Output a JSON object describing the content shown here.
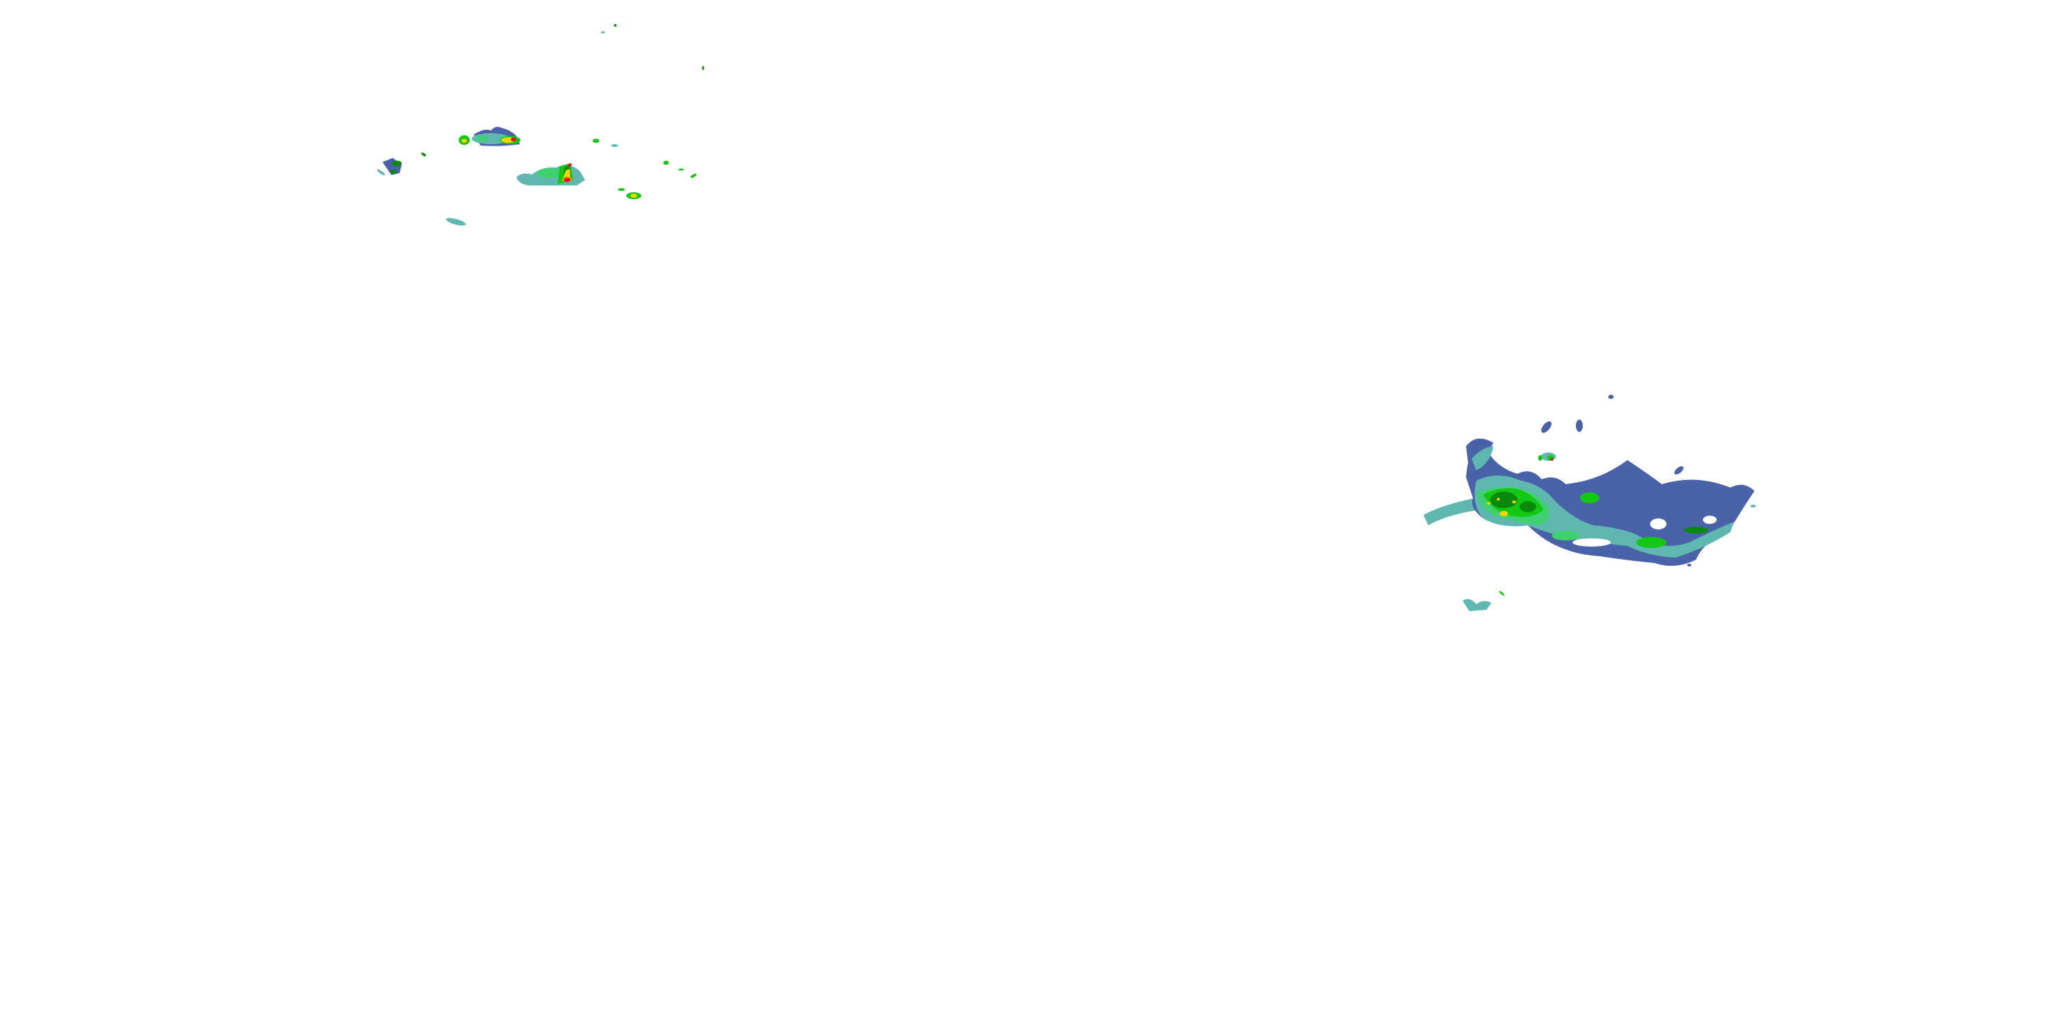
{
  "map": {
    "layer": "radar-reflectivity",
    "background": "#ffffff",
    "palette": {
      "light": "#4a62a8",
      "light_moderate": "#5fb8b0",
      "moderate": "#3fd070",
      "moderate_heavy": "#12c812",
      "heavy": "#0a8a0a",
      "very_heavy": "#f2d500",
      "intense": "#f59a00",
      "extreme": "#e8141e"
    }
  }
}
